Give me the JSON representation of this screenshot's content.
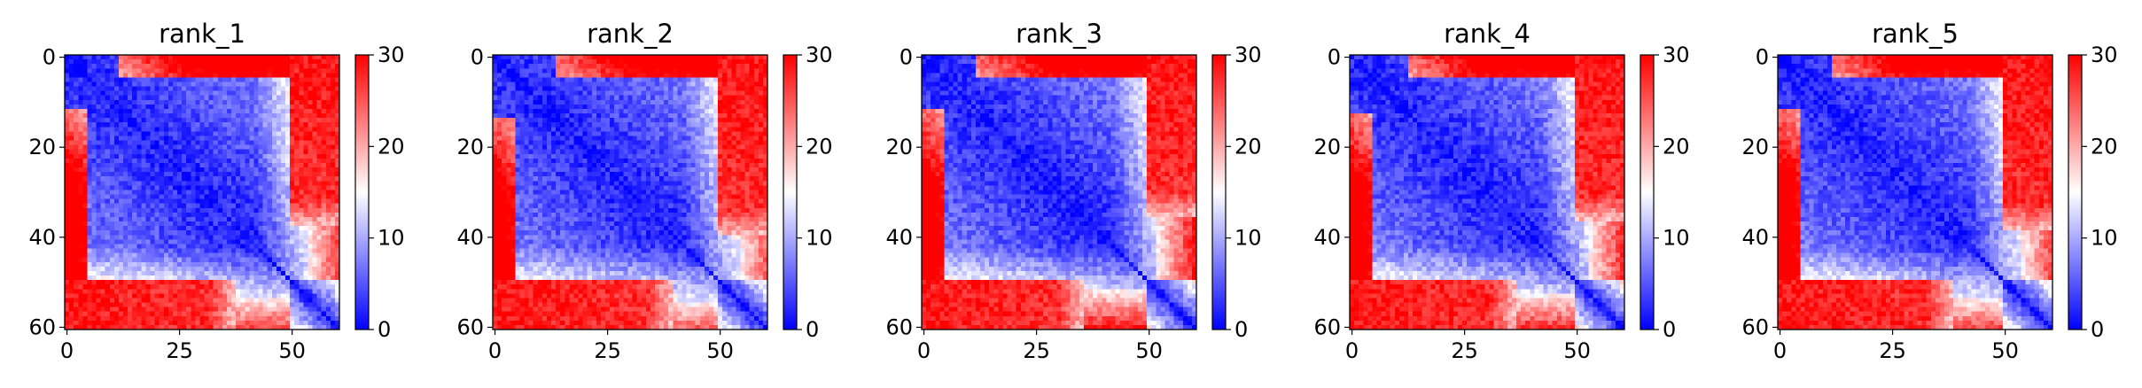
{
  "chart_data": [
    {
      "type": "heatmap",
      "title": "rank_1",
      "size": 61,
      "seed": 11,
      "x_ticks": [
        "0",
        "25",
        "50"
      ],
      "y_ticks": [
        "0",
        "20",
        "40",
        "60"
      ],
      "colorbar": {
        "ticks": [
          "0",
          "10",
          "20",
          "30"
        ],
        "min": 0,
        "max": 30,
        "colormap": "bwr"
      },
      "structure": {
        "split_row": 50,
        "lower_block_end_col": 38,
        "upper_block_start_col": 12,
        "right_block_start_col": 54,
        "diagonal_value": 0,
        "off_block_value": 30
      }
    },
    {
      "type": "heatmap",
      "title": "rank_2",
      "size": 61,
      "seed": 23,
      "x_ticks": [
        "0",
        "25",
        "50"
      ],
      "y_ticks": [
        "0",
        "20",
        "40",
        "60"
      ],
      "colorbar": {
        "ticks": [
          "0",
          "10",
          "20",
          "30"
        ],
        "min": 0,
        "max": 30,
        "colormap": "bwr"
      },
      "structure": {
        "split_row": 50,
        "lower_block_end_col": 40,
        "upper_block_start_col": 14,
        "right_block_start_col": 55,
        "diagonal_value": 0,
        "off_block_value": 30
      }
    },
    {
      "type": "heatmap",
      "title": "rank_3",
      "size": 61,
      "seed": 37,
      "x_ticks": [
        "0",
        "25",
        "50"
      ],
      "y_ticks": [
        "0",
        "20",
        "40",
        "60"
      ],
      "colorbar": {
        "ticks": [
          "0",
          "10",
          "20",
          "30"
        ],
        "min": 0,
        "max": 30,
        "colormap": "bwr"
      },
      "structure": {
        "split_row": 50,
        "lower_block_end_col": 36,
        "upper_block_start_col": 12,
        "right_block_start_col": 52,
        "diagonal_value": 0,
        "off_block_value": 30
      }
    },
    {
      "type": "heatmap",
      "title": "rank_4",
      "size": 61,
      "seed": 41,
      "x_ticks": [
        "0",
        "25",
        "50"
      ],
      "y_ticks": [
        "0",
        "20",
        "40",
        "60"
      ],
      "colorbar": {
        "ticks": [
          "0",
          "10",
          "20",
          "30"
        ],
        "min": 0,
        "max": 30,
        "colormap": "bwr"
      },
      "structure": {
        "split_row": 50,
        "lower_block_end_col": 37,
        "upper_block_start_col": 13,
        "right_block_start_col": 53,
        "diagonal_value": 0,
        "off_block_value": 30
      }
    },
    {
      "type": "heatmap",
      "title": "rank_5",
      "size": 61,
      "seed": 53,
      "x_ticks": [
        "0",
        "25",
        "50"
      ],
      "y_ticks": [
        "0",
        "20",
        "40",
        "60"
      ],
      "colorbar": {
        "ticks": [
          "0",
          "10",
          "20",
          "30"
        ],
        "min": 0,
        "max": 30,
        "colormap": "bwr"
      },
      "structure": {
        "split_row": 50,
        "lower_block_end_col": 39,
        "upper_block_start_col": 12,
        "right_block_start_col": 54,
        "diagonal_value": 0,
        "off_block_value": 30
      }
    }
  ]
}
